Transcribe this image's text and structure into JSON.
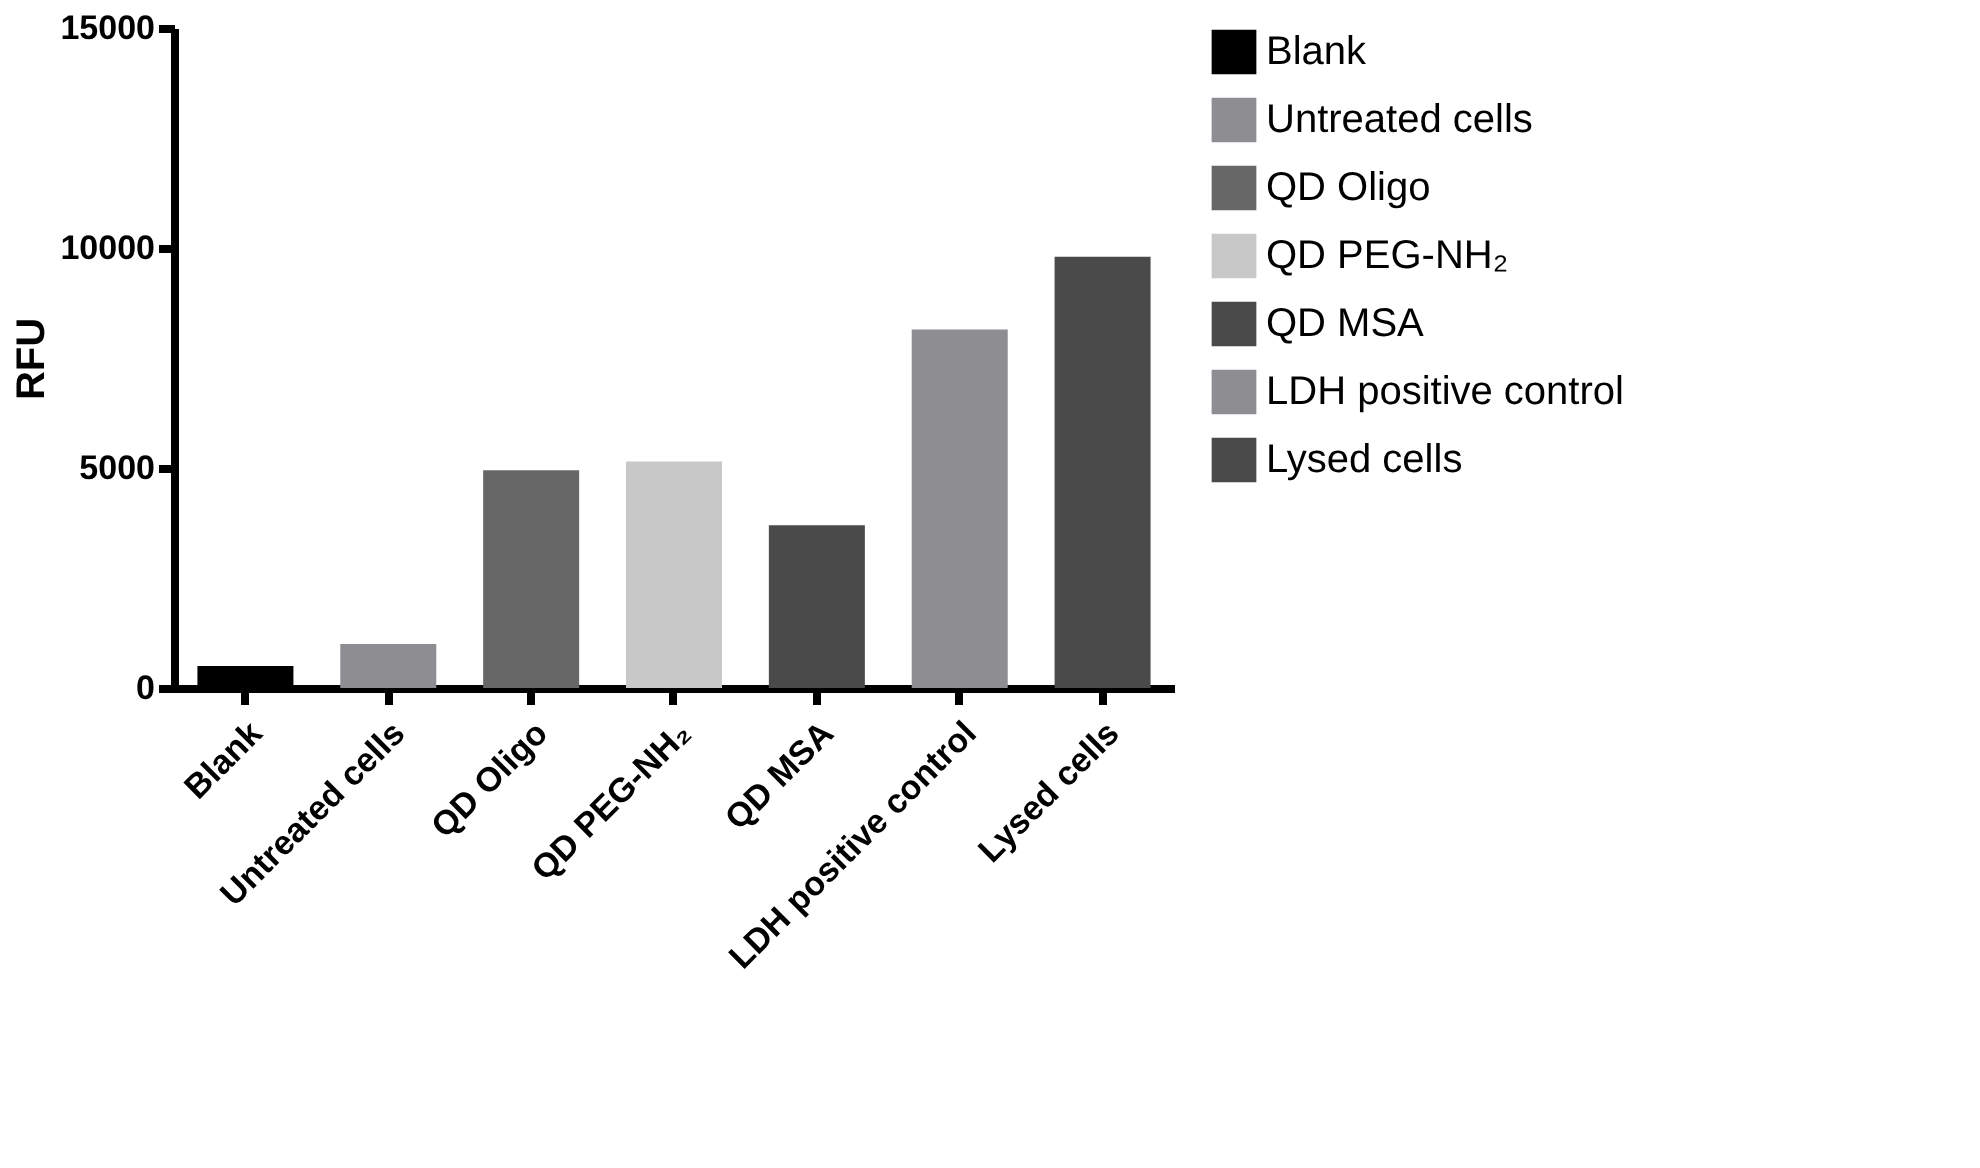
{
  "chart_data": {
    "type": "bar",
    "ylabel": "RFU",
    "categories": [
      "Blank",
      "Untreated cells",
      "QD Oligo",
      "QD PEG-NH₂",
      "QD MSA",
      "LDH positive control",
      "Lysed cells"
    ],
    "series": [
      {
        "name": "Blank",
        "color": "#000000",
        "values": [
          500,
          null,
          null,
          null,
          null,
          null,
          null
        ]
      },
      {
        "name": "Untreated cells",
        "color": "#8e8d92",
        "values": [
          null,
          1000,
          null,
          null,
          null,
          null,
          null
        ]
      },
      {
        "name": "QD Oligo",
        "color": "#676767",
        "values": [
          null,
          null,
          4950,
          null,
          null,
          null,
          null
        ]
      },
      {
        "name": "QD PEG-NH₂",
        "color": "#c8c8c8",
        "values": [
          null,
          null,
          null,
          5150,
          null,
          null,
          null
        ]
      },
      {
        "name": "QD MSA",
        "color": "#4a4a4a",
        "values": [
          null,
          null,
          null,
          null,
          3700,
          null,
          null
        ]
      },
      {
        "name": "LDH positive control",
        "color": "#8e8d92",
        "values": [
          null,
          null,
          null,
          null,
          null,
          8150,
          null
        ]
      },
      {
        "name": "Lysed cells",
        "color": "#4a4a4a",
        "values": [
          null,
          null,
          null,
          null,
          null,
          null,
          9800
        ]
      }
    ],
    "ylim": [
      0,
      15000
    ],
    "yticks": [
      0,
      5000,
      10000,
      15000
    ],
    "grid": false,
    "legend": "right"
  }
}
